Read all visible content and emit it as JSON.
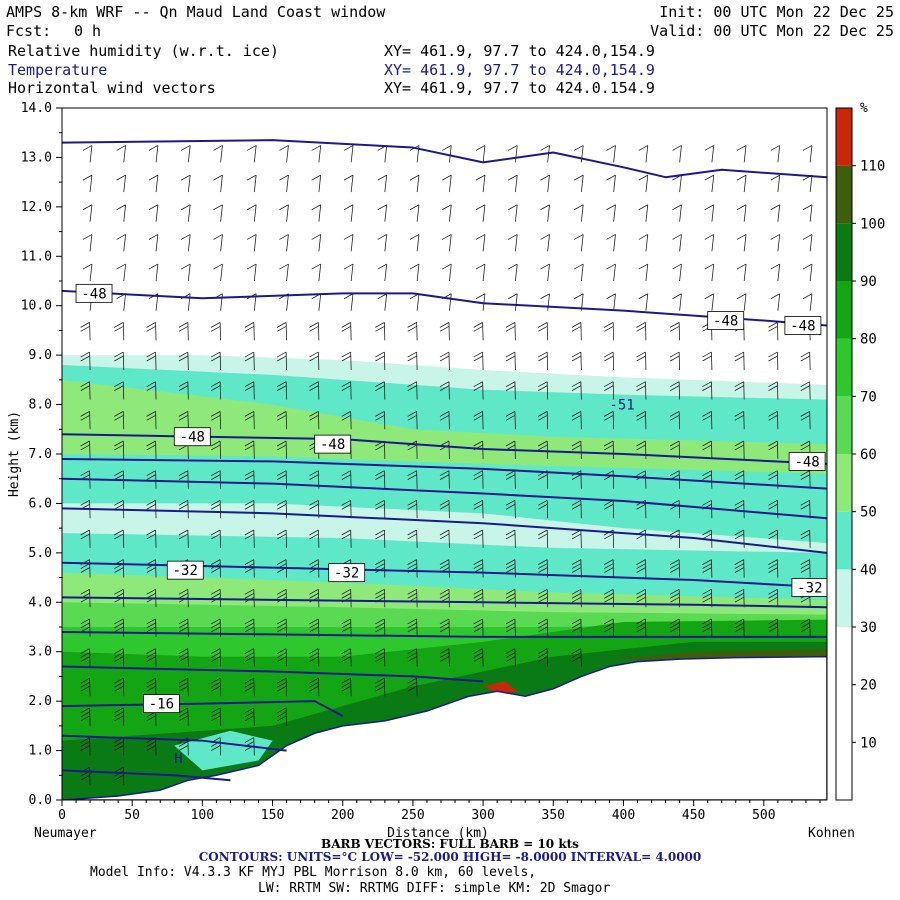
{
  "header": {
    "title": "AMPS 8-km WRF -- Qn Maud Land Coast window",
    "init": "Init: 00 UTC Mon 22 Dec 25",
    "fcst_label": "Fcst:",
    "fcst_value": "0 h",
    "valid": "Valid: 00 UTC Mon 22 Dec 25",
    "fields": [
      {
        "name": "Relative humidity (w.r.t. ice)",
        "xy": "XY= 461.9, 97.7 to 424.0,154.9"
      },
      {
        "name": "Temperature",
        "xy": "XY= 461.9, 97.7 to 424.0,154.9"
      },
      {
        "name": "Horizontal wind vectors",
        "xy": "XY= 461.9, 97.7 to 424.0.154.9"
      }
    ]
  },
  "chart_data": {
    "type": "heatmap",
    "xlabel": "Distance (km)",
    "ylabel": "Height (km)",
    "xlim": [
      0,
      545
    ],
    "ylim": [
      0,
      14
    ],
    "x_ticks": [
      0,
      50,
      100,
      150,
      200,
      250,
      300,
      350,
      400,
      450,
      500
    ],
    "y_ticks": [
      "0.0",
      "1.0",
      "2.0",
      "3.0",
      "4.0",
      "5.0",
      "6.0",
      "7.0",
      "8.0",
      "9.0",
      "10.0",
      "11.0",
      "12.0",
      "13.0",
      "14.0"
    ],
    "left_endpoint": "Neumayer",
    "right_endpoint": "Kohnen",
    "colorbar": {
      "unit": "%",
      "ticks": [
        10,
        20,
        30,
        40,
        50,
        60,
        70,
        80,
        90,
        100,
        110
      ],
      "bins": [
        {
          "from": 0,
          "to": 30,
          "color": "#ffffff"
        },
        {
          "from": 30,
          "to": 40,
          "color": "#c8f5e8"
        },
        {
          "from": 40,
          "to": 50,
          "color": "#5fe8c8"
        },
        {
          "from": 50,
          "to": 60,
          "color": "#8ee87a"
        },
        {
          "from": 60,
          "to": 70,
          "color": "#5ada52"
        },
        {
          "from": 70,
          "to": 80,
          "color": "#2ec82e"
        },
        {
          "from": 80,
          "to": 90,
          "color": "#13a513"
        },
        {
          "from": 90,
          "to": 100,
          "color": "#0a7a14"
        },
        {
          "from": 100,
          "to": 110,
          "color": "#3e5e0c"
        },
        {
          "from": 110,
          "to": 120,
          "color": "#c82808"
        }
      ]
    },
    "terrain_km": [
      [
        0,
        0.0
      ],
      [
        40,
        0.08
      ],
      [
        70,
        0.2
      ],
      [
        90,
        0.4
      ],
      [
        110,
        0.5
      ],
      [
        140,
        0.7
      ],
      [
        160,
        1.1
      ],
      [
        180,
        1.35
      ],
      [
        200,
        1.5
      ],
      [
        230,
        1.6
      ],
      [
        260,
        1.8
      ],
      [
        290,
        2.1
      ],
      [
        310,
        2.2
      ],
      [
        330,
        2.1
      ],
      [
        350,
        2.25
      ],
      [
        370,
        2.5
      ],
      [
        390,
        2.7
      ],
      [
        410,
        2.8
      ],
      [
        440,
        2.85
      ],
      [
        480,
        2.88
      ],
      [
        545,
        2.9
      ]
    ],
    "rh_layers": [
      {
        "color": "#c8f5e8",
        "top": [
          [
            0,
            9.0
          ],
          [
            100,
            9.0
          ],
          [
            200,
            8.9
          ],
          [
            300,
            8.7
          ],
          [
            400,
            8.55
          ],
          [
            545,
            8.4
          ]
        ]
      },
      {
        "color": "#5fe8c8",
        "top": [
          [
            0,
            8.8
          ],
          [
            150,
            8.6
          ],
          [
            300,
            8.3
          ],
          [
            400,
            8.2
          ],
          [
            545,
            8.1
          ]
        ]
      },
      {
        "color": "#8ee87a",
        "top": [
          [
            0,
            8.5
          ],
          [
            150,
            8.0
          ],
          [
            250,
            7.5
          ],
          [
            350,
            7.35
          ],
          [
            545,
            7.2
          ]
        ]
      },
      {
        "color": "#5fe8c8",
        "top": [
          [
            0,
            7.0
          ],
          [
            150,
            6.95
          ],
          [
            300,
            6.8
          ],
          [
            545,
            6.6
          ]
        ]
      },
      {
        "color": "#c8f5e8",
        "top": [
          [
            0,
            6.0
          ],
          [
            150,
            6.0
          ],
          [
            300,
            5.8
          ],
          [
            400,
            5.5
          ],
          [
            545,
            5.2
          ]
        ]
      },
      {
        "color": "#5fe8c8",
        "top": [
          [
            0,
            5.4
          ],
          [
            200,
            5.3
          ],
          [
            350,
            5.1
          ],
          [
            545,
            5.0
          ]
        ]
      },
      {
        "color": "#8ee87a",
        "top": [
          [
            0,
            4.6
          ],
          [
            200,
            4.4
          ],
          [
            350,
            4.2
          ],
          [
            545,
            4.05
          ]
        ]
      },
      {
        "color": "#5ada52",
        "top": [
          [
            0,
            4.0
          ],
          [
            200,
            3.9
          ],
          [
            350,
            3.8
          ],
          [
            545,
            3.75
          ]
        ]
      },
      {
        "color": "#2ec82e",
        "top": [
          [
            0,
            3.5
          ],
          [
            200,
            3.5
          ],
          [
            350,
            3.5
          ],
          [
            545,
            3.6
          ]
        ]
      },
      {
        "color": "#13a513",
        "top": [
          [
            0,
            3.0
          ],
          [
            100,
            2.9
          ],
          [
            200,
            2.9
          ],
          [
            300,
            3.2
          ],
          [
            400,
            3.6
          ],
          [
            545,
            3.65
          ]
        ]
      },
      {
        "color": "#0a7a14",
        "top": [
          [
            0,
            1.2
          ],
          [
            150,
            1.5
          ],
          [
            250,
            2.3
          ],
          [
            350,
            2.9
          ],
          [
            450,
            3.2
          ],
          [
            545,
            3.2
          ]
        ]
      }
    ],
    "rh_patches": [
      {
        "color": "#5fe8c8",
        "poly": [
          [
            80,
            1.1
          ],
          [
            120,
            1.4
          ],
          [
            150,
            1.2
          ],
          [
            140,
            0.8
          ],
          [
            100,
            0.6
          ]
        ]
      },
      {
        "color": "#c82808",
        "poly": [
          [
            300,
            2.3
          ],
          [
            315,
            2.4
          ],
          [
            325,
            2.2
          ],
          [
            312,
            2.15
          ]
        ]
      },
      {
        "color": "#3e5e0c",
        "poly": [
          [
            390,
            2.85
          ],
          [
            450,
            3.0
          ],
          [
            545,
            3.05
          ],
          [
            545,
            2.9
          ],
          [
            420,
            2.85
          ]
        ]
      }
    ],
    "temperature_contours": [
      {
        "level": -52,
        "points": [
          [
            0,
            13.3
          ],
          [
            150,
            13.35
          ],
          [
            250,
            13.2
          ],
          [
            300,
            12.9
          ],
          [
            350,
            13.1
          ],
          [
            400,
            12.8
          ],
          [
            430,
            12.6
          ],
          [
            470,
            12.75
          ],
          [
            545,
            12.6
          ]
        ]
      },
      {
        "level": -48,
        "points": [
          [
            0,
            10.3
          ],
          [
            100,
            10.15
          ],
          [
            200,
            10.25
          ],
          [
            250,
            10.25
          ],
          [
            300,
            10.05
          ],
          [
            400,
            9.9
          ],
          [
            500,
            9.7
          ],
          [
            545,
            9.6
          ]
        ]
      },
      {
        "level": -48,
        "points": [
          [
            0,
            7.4
          ],
          [
            100,
            7.35
          ],
          [
            200,
            7.3
          ],
          [
            300,
            7.1
          ],
          [
            400,
            7.0
          ],
          [
            545,
            6.8
          ]
        ]
      },
      {
        "level": -44,
        "points": [
          [
            0,
            6.9
          ],
          [
            150,
            6.85
          ],
          [
            300,
            6.7
          ],
          [
            400,
            6.55
          ],
          [
            545,
            6.3
          ]
        ]
      },
      {
        "level": -40,
        "points": [
          [
            0,
            6.5
          ],
          [
            150,
            6.4
          ],
          [
            300,
            6.2
          ],
          [
            400,
            6.05
          ],
          [
            545,
            5.7
          ]
        ]
      },
      {
        "level": -36,
        "points": [
          [
            0,
            5.9
          ],
          [
            150,
            5.8
          ],
          [
            300,
            5.6
          ],
          [
            450,
            5.3
          ],
          [
            545,
            5.0
          ]
        ]
      },
      {
        "level": -32,
        "points": [
          [
            0,
            4.8
          ],
          [
            150,
            4.7
          ],
          [
            300,
            4.6
          ],
          [
            450,
            4.45
          ],
          [
            545,
            4.3
          ]
        ]
      },
      {
        "level": -28,
        "points": [
          [
            0,
            4.1
          ],
          [
            150,
            4.05
          ],
          [
            300,
            4.0
          ],
          [
            450,
            3.95
          ],
          [
            545,
            3.9
          ]
        ]
      },
      {
        "level": -24,
        "points": [
          [
            0,
            3.4
          ],
          [
            150,
            3.35
          ],
          [
            300,
            3.3
          ],
          [
            450,
            3.3
          ],
          [
            545,
            3.3
          ]
        ]
      },
      {
        "level": -20,
        "points": [
          [
            0,
            2.7
          ],
          [
            150,
            2.6
          ],
          [
            250,
            2.5
          ],
          [
            300,
            2.4
          ]
        ]
      },
      {
        "level": -16,
        "points": [
          [
            0,
            1.9
          ],
          [
            100,
            1.95
          ],
          [
            180,
            2.0
          ],
          [
            200,
            1.7
          ]
        ]
      },
      {
        "level": -12,
        "points": [
          [
            0,
            1.3
          ],
          [
            100,
            1.2
          ],
          [
            160,
            1.0
          ]
        ]
      },
      {
        "level": -8,
        "points": [
          [
            0,
            0.6
          ],
          [
            80,
            0.5
          ],
          [
            120,
            0.4
          ]
        ]
      }
    ],
    "contour_labels": [
      {
        "text": "-48",
        "x": 10,
        "y": 10.25
      },
      {
        "text": "-48",
        "x": 460,
        "y": 9.7
      },
      {
        "text": "-48",
        "x": 515,
        "y": 9.6
      },
      {
        "text": "-48",
        "x": 80,
        "y": 7.35
      },
      {
        "text": "-48",
        "x": 180,
        "y": 7.2
      },
      {
        "text": "-48",
        "x": 518,
        "y": 6.85
      },
      {
        "text": "-32",
        "x": 75,
        "y": 4.65
      },
      {
        "text": "-32",
        "x": 190,
        "y": 4.6
      },
      {
        "text": "-32",
        "x": 520,
        "y": 4.3
      },
      {
        "text": "-16",
        "x": 58,
        "y": 1.95
      }
    ],
    "annotations": [
      {
        "text": "-51",
        "x": 390,
        "y": 7.9
      },
      {
        "text": "H",
        "x": 80,
        "y": 0.75
      }
    ],
    "barb_columns_km": [
      20,
      44,
      67,
      90,
      113,
      137,
      160,
      183,
      206,
      230,
      253,
      276,
      300,
      323,
      346,
      370,
      393,
      416,
      440,
      463,
      486,
      510,
      533
    ],
    "barb_levels_km": [
      0.3,
      0.9,
      1.5,
      2.1,
      2.7,
      3.3,
      3.9,
      4.5,
      5.1,
      5.7,
      6.3,
      6.9,
      7.5,
      8.1,
      8.7,
      9.3,
      9.9,
      10.5,
      11.1,
      11.7,
      12.3,
      12.9
    ]
  },
  "footer": {
    "barb": "BARB VECTORS: FULL BARB = 10 kts",
    "contours": "CONTOURS: UNITS=°C LOW= -52.000 HIGH= -8.0000 INTERVAL= 4.0000",
    "model": "Model Info: V4.3.3 KF MYJ PBL Morrison 8.0 km, 60 levels,",
    "physics": "LW: RRTM SW: RRTMG DIFF: simple KM: 2D Smagor"
  },
  "colors": {
    "contour": "#1a1a8c",
    "barb": "#202020",
    "frame": "#000000"
  }
}
